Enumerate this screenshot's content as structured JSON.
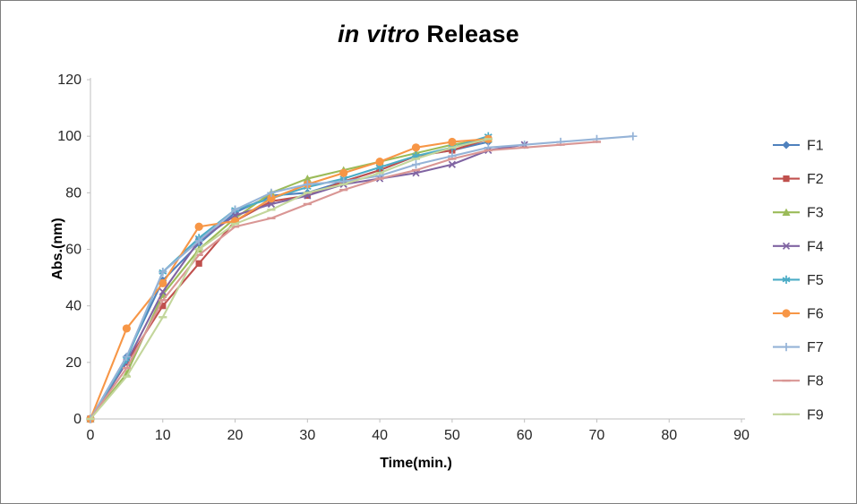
{
  "frame": {
    "background": "#FFFFFF",
    "border_color": "#7F7F7F"
  },
  "chart_data": {
    "type": "line",
    "title": "in vitro Release",
    "title_italic": "in vitro",
    "title_rest": " Release",
    "xlabel": "Time(min.)",
    "ylabel": "Abs.(nm)",
    "xlim": [
      0,
      90
    ],
    "ylim": [
      0,
      120
    ],
    "x_ticks": [
      0,
      10,
      20,
      30,
      40,
      50,
      60,
      70,
      80,
      90
    ],
    "y_ticks": [
      0,
      20,
      40,
      60,
      80,
      100,
      120
    ],
    "grid": false,
    "legend_position": "right",
    "axis_color": "#BFBFBF",
    "tick_label_color": "#262626",
    "series": [
      {
        "name": "F1",
        "color": "#4F81BD",
        "marker": "diamond",
        "x": [
          0,
          5,
          10,
          15,
          20,
          25,
          30,
          35,
          40,
          45,
          50,
          55
        ],
        "y": [
          0,
          22,
          49,
          62,
          73,
          79,
          80,
          84,
          88,
          93,
          95,
          98
        ]
      },
      {
        "name": "F2",
        "color": "#C0504D",
        "marker": "square",
        "x": [
          0,
          5,
          10,
          15,
          20,
          25,
          30,
          35,
          40,
          45,
          50,
          55
        ],
        "y": [
          0,
          20,
          40,
          55,
          70,
          77,
          79,
          84,
          88,
          93,
          95,
          99
        ]
      },
      {
        "name": "F3",
        "color": "#9BBB59",
        "marker": "triangle",
        "x": [
          0,
          5,
          10,
          15,
          20,
          25,
          30,
          35,
          40,
          45,
          50,
          55
        ],
        "y": [
          0,
          16,
          44,
          60,
          71,
          80,
          85,
          88,
          91,
          94,
          97,
          99
        ]
      },
      {
        "name": "F4",
        "color": "#8064A2",
        "marker": "x",
        "x": [
          0,
          5,
          10,
          15,
          20,
          25,
          30,
          35,
          40,
          45,
          50,
          55,
          60
        ],
        "y": [
          0,
          20,
          45,
          63,
          72,
          76,
          79,
          83,
          85,
          87,
          90,
          95,
          97
        ]
      },
      {
        "name": "F5",
        "color": "#4BACC6",
        "marker": "asterisk",
        "x": [
          0,
          5,
          10,
          15,
          20,
          25,
          30,
          35,
          40,
          45,
          50,
          55
        ],
        "y": [
          0,
          21,
          52,
          64,
          74,
          78,
          82,
          85,
          89,
          93,
          96,
          100
        ]
      },
      {
        "name": "F6",
        "color": "#F79646",
        "marker": "circle",
        "x": [
          0,
          5,
          10,
          15,
          20,
          25,
          30,
          35,
          40,
          45,
          50,
          55
        ],
        "y": [
          0,
          32,
          48,
          68,
          70,
          78,
          83,
          87,
          91,
          96,
          98,
          99
        ]
      },
      {
        "name": "F7",
        "color": "#95B3D7",
        "marker": "plus",
        "x": [
          0,
          5,
          10,
          15,
          20,
          25,
          30,
          35,
          40,
          45,
          50,
          55,
          60,
          65,
          70,
          75
        ],
        "y": [
          0,
          22,
          52,
          63,
          74,
          80,
          83,
          84,
          86,
          90,
          93,
          96,
          97,
          98,
          99,
          100
        ]
      },
      {
        "name": "F8",
        "color": "#D99694",
        "marker": "dash",
        "x": [
          0,
          5,
          10,
          15,
          20,
          25,
          30,
          35,
          40,
          45,
          50,
          55,
          60,
          65,
          70
        ],
        "y": [
          0,
          18,
          42,
          58,
          68,
          71,
          76,
          81,
          85,
          88,
          92,
          95,
          96,
          97,
          98
        ]
      },
      {
        "name": "F9",
        "color": "#C3D69B",
        "marker": "dash",
        "x": [
          0,
          5,
          10,
          15,
          20,
          25,
          30,
          35,
          40,
          45,
          50,
          55
        ],
        "y": [
          0,
          15,
          36,
          60,
          69,
          74,
          80,
          83,
          87,
          92,
          96,
          99
        ]
      }
    ]
  }
}
